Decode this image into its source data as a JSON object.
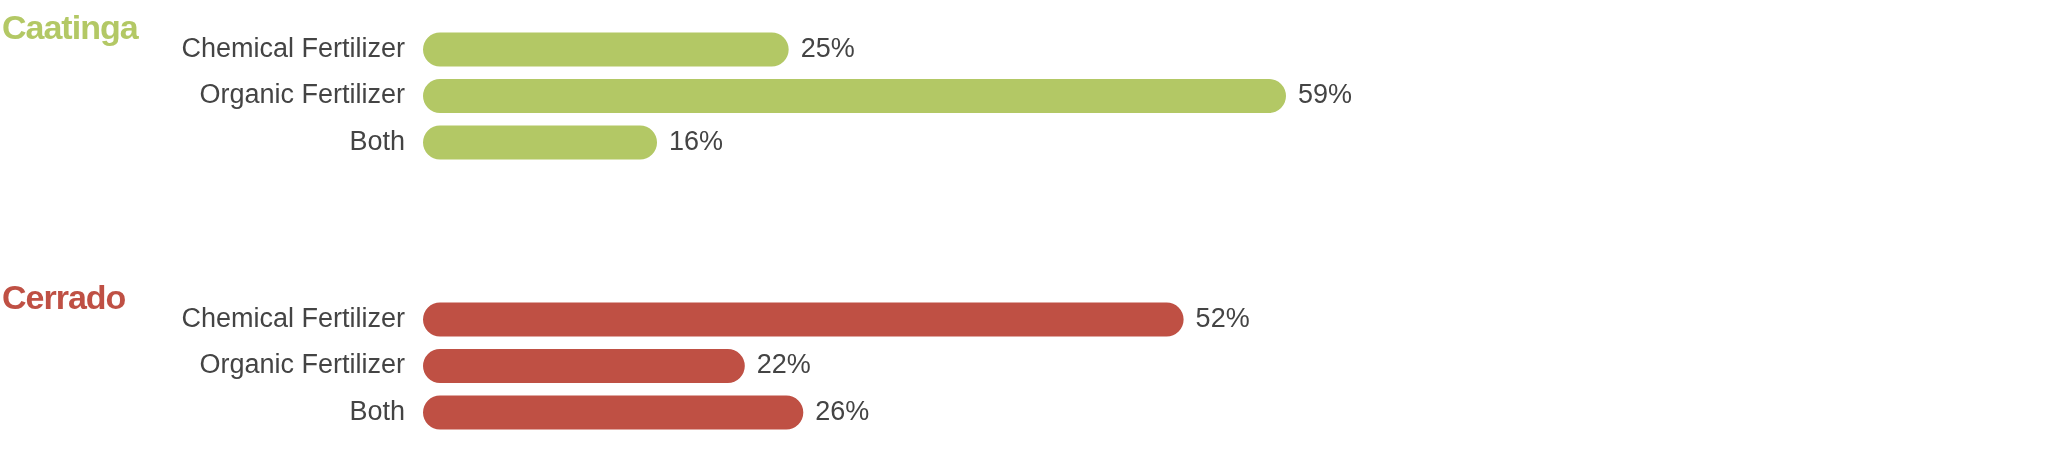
{
  "chart_data": [
    {
      "type": "bar",
      "orientation": "horizontal",
      "title": "Caatinga",
      "categories": [
        "Chemical Fertilizer",
        "Organic Fertilizer",
        "Both"
      ],
      "values": [
        25,
        59,
        16
      ],
      "color": "#b3c865",
      "value_labels": [
        "25%",
        "59%",
        "16%"
      ]
    },
    {
      "type": "bar",
      "orientation": "horizontal",
      "title": "Cerrado",
      "categories": [
        "Chemical Fertilizer",
        "Organic Fertilizer",
        "Both"
      ],
      "values": [
        52,
        22,
        26
      ],
      "color": "#bf5044",
      "value_labels": [
        "52%",
        "22%",
        "26%"
      ]
    }
  ]
}
